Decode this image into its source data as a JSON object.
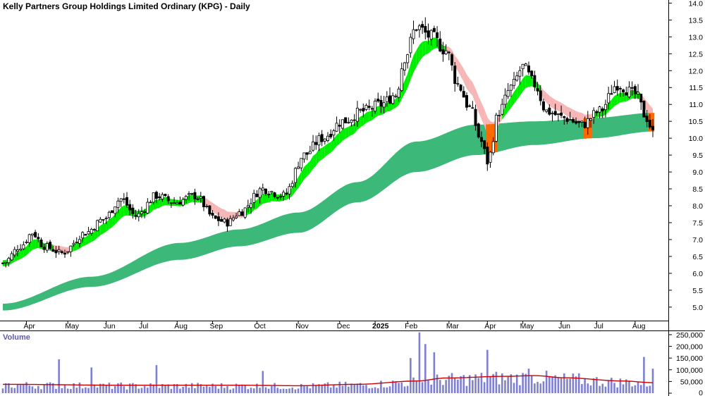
{
  "chart_data": {
    "type": "candlestick",
    "title": "Kelly Partners Group Holdings Limited Ordinary (KPG) - Daily",
    "price_axis": {
      "ylim": [
        4.6,
        14.05
      ],
      "ticks": [
        "14.0",
        "13.5",
        "13.0",
        "12.5",
        "12.0",
        "11.5",
        "11.0",
        "10.5",
        "10.0",
        "9.5",
        "9.0",
        "8.5",
        "8.0",
        "7.5",
        "7.0",
        "6.5",
        "6.0",
        "5.5",
        "5.0"
      ]
    },
    "volume_panel": {
      "title": "Volume",
      "ylim": [
        0,
        265000
      ],
      "ticks": [
        "250,000",
        "200,000",
        "150,000",
        "100,000",
        "50,000",
        "0"
      ],
      "volume_ma_color": "#cc0000",
      "bar_color": "#8080d0"
    },
    "x_labels": [
      "Apr",
      "May",
      "Jun",
      "Jul",
      "Aug",
      "Sep",
      "Oct",
      "Nov",
      "Dec",
      "2025",
      "Feb",
      "Mar",
      "Apr",
      "May",
      "Jun",
      "Jul",
      "Aug"
    ],
    "colors": {
      "long_band": "#3cb878",
      "short_band_up": "#00ee00",
      "short_band_down": "#f7b5b5",
      "cross_highlight": "#ff6a00",
      "candle": "#000000"
    },
    "series": {
      "price_keypoints": [
        [
          0,
          6.3
        ],
        [
          6,
          6.8
        ],
        [
          10,
          7.2
        ],
        [
          14,
          6.8
        ],
        [
          20,
          6.6
        ],
        [
          28,
          7.2
        ],
        [
          34,
          7.6
        ],
        [
          40,
          8.2
        ],
        [
          45,
          7.7
        ],
        [
          52,
          8.3
        ],
        [
          58,
          8.1
        ],
        [
          65,
          8.3
        ],
        [
          72,
          7.6
        ],
        [
          76,
          7.5
        ],
        [
          80,
          7.8
        ],
        [
          88,
          8.5
        ],
        [
          95,
          8.3
        ],
        [
          102,
          9.5
        ],
        [
          108,
          10.0
        ],
        [
          115,
          10.5
        ],
        [
          122,
          10.8
        ],
        [
          128,
          11.0
        ],
        [
          133,
          11.3
        ],
        [
          136,
          12.4
        ],
        [
          140,
          13.3
        ],
        [
          145,
          13.0
        ],
        [
          150,
          12.6
        ],
        [
          154,
          11.6
        ],
        [
          158,
          10.9
        ],
        [
          162,
          9.9
        ],
        [
          164,
          9.3
        ],
        [
          168,
          10.8
        ],
        [
          172,
          11.5
        ],
        [
          176,
          12.1
        ],
        [
          180,
          11.6
        ],
        [
          184,
          10.8
        ],
        [
          190,
          10.6
        ],
        [
          196,
          10.4
        ],
        [
          202,
          10.8
        ],
        [
          208,
          11.6
        ],
        [
          214,
          11.3
        ],
        [
          218,
          10.6
        ],
        [
          220,
          10.15
        ]
      ],
      "long_ma_lower_keypoints": [
        [
          0,
          4.9
        ],
        [
          30,
          5.6
        ],
        [
          60,
          6.4
        ],
        [
          80,
          6.8
        ],
        [
          100,
          7.2
        ],
        [
          120,
          8.1
        ],
        [
          140,
          9.0
        ],
        [
          160,
          9.5
        ],
        [
          180,
          9.8
        ],
        [
          200,
          10.0
        ],
        [
          220,
          10.2
        ]
      ],
      "long_ma_upper_keypoints": [
        [
          0,
          5.1
        ],
        [
          30,
          5.9
        ],
        [
          60,
          6.9
        ],
        [
          80,
          7.3
        ],
        [
          100,
          7.8
        ],
        [
          120,
          8.7
        ],
        [
          140,
          9.9
        ],
        [
          160,
          10.4
        ],
        [
          180,
          10.5
        ],
        [
          200,
          10.6
        ],
        [
          220,
          10.75
        ]
      ],
      "volume_ma_keypoints": [
        [
          0,
          38000
        ],
        [
          40,
          34000
        ],
        [
          80,
          34000
        ],
        [
          100,
          32000
        ],
        [
          120,
          38000
        ],
        [
          140,
          52000
        ],
        [
          150,
          65000
        ],
        [
          170,
          72000
        ],
        [
          180,
          75000
        ],
        [
          190,
          66000
        ],
        [
          210,
          52000
        ],
        [
          220,
          45000
        ]
      ],
      "volume_spikes": [
        [
          19,
          145000
        ],
        [
          30,
          110000
        ],
        [
          52,
          120000
        ],
        [
          88,
          95000
        ],
        [
          138,
          150000
        ],
        [
          141,
          260000
        ],
        [
          143,
          210000
        ],
        [
          146,
          175000
        ],
        [
          164,
          185000
        ],
        [
          178,
          105000
        ],
        [
          217,
          155000
        ],
        [
          220,
          105000
        ]
      ]
    }
  }
}
